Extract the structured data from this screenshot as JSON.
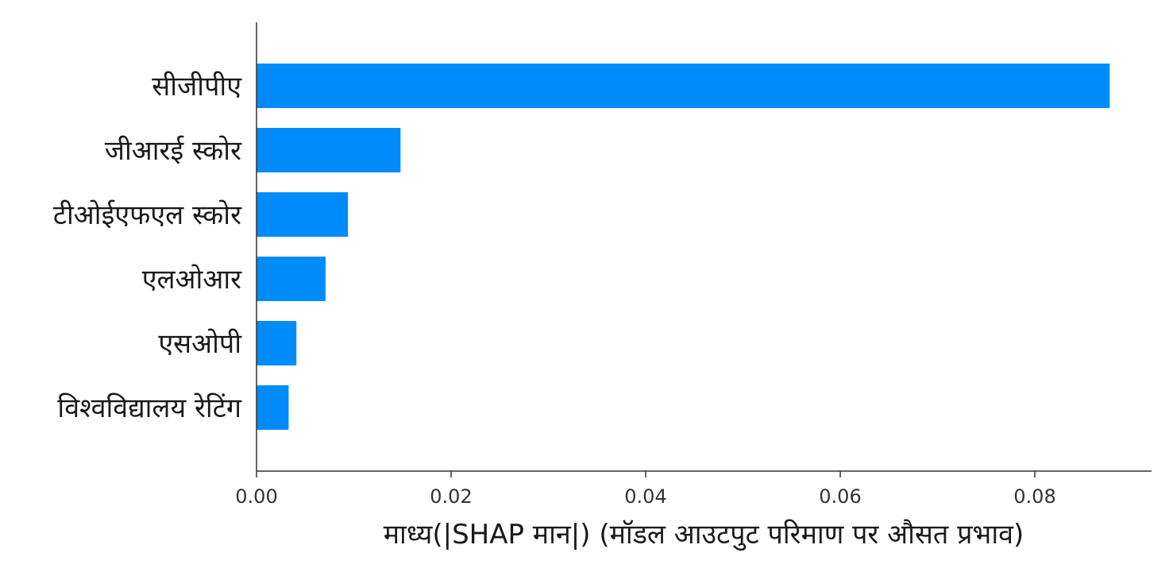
{
  "chart_data": {
    "type": "bar",
    "orientation": "horizontal",
    "categories": [
      "सीजीपीए",
      "जीआरई स्कोर",
      "टीओईएफएल स्कोर",
      "एलओआर",
      "एसओपी",
      "विश्वविद्यालय रेटिंग"
    ],
    "values": [
      0.0877,
      0.0148,
      0.0094,
      0.0071,
      0.0041,
      0.0033
    ],
    "xlabel": "माध्य(|SHAP मान|) (मॉडल आउटपुट परिमाण पर औसत प्रभाव)",
    "ylabel": "",
    "xlim": [
      0,
      0.092
    ],
    "xticks": [
      "0.00",
      "0.02",
      "0.04",
      "0.06",
      "0.08"
    ],
    "xtick_values": [
      0,
      0.02,
      0.04,
      0.06,
      0.08
    ],
    "bar_color": "#008bfb",
    "axis_color": "#333333",
    "grid": false,
    "legend": "none"
  }
}
